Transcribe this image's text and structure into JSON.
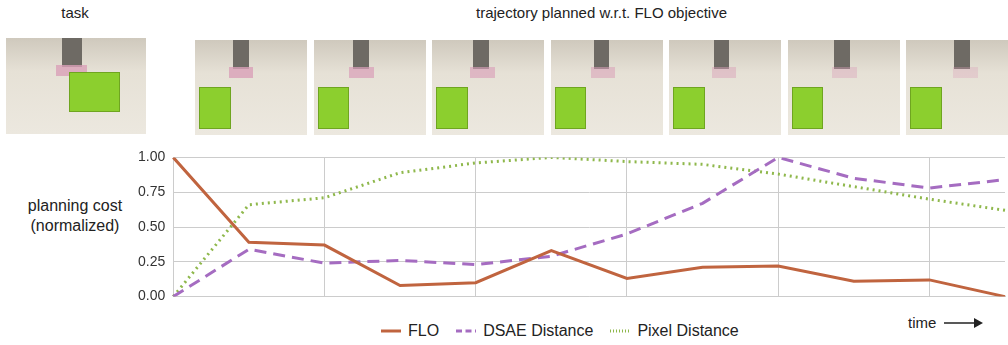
{
  "figure": {
    "task_label": "task",
    "trajectory_label": "trajectory planned w.r.t. FLO objective",
    "frames": 7
  },
  "chart_data": {
    "type": "line",
    "y_label": "planning cost (normalized)",
    "x_label": "time",
    "categories": [
      null,
      null,
      null,
      null,
      null,
      null,
      null,
      null,
      null,
      null,
      null,
      null
    ],
    "series": [
      {
        "name": "FLO",
        "color": "#c0643f",
        "line_style": "solid",
        "values": [
          1.0,
          0.39,
          0.37,
          0.08,
          0.1,
          0.33,
          0.13,
          0.21,
          0.22,
          0.11,
          0.12,
          0.0
        ]
      },
      {
        "name": "DSAE Distance",
        "color": "#a56cc1",
        "line_style": "dashed",
        "values": [
          0.0,
          0.34,
          0.24,
          0.26,
          0.23,
          0.29,
          0.45,
          0.67,
          1.0,
          0.85,
          0.78,
          0.84
        ]
      },
      {
        "name": "Pixel Distance",
        "color": "#8fb84c",
        "line_style": "dotted",
        "values": [
          0.0,
          0.66,
          0.71,
          0.89,
          0.96,
          1.0,
          0.97,
          0.95,
          0.88,
          0.79,
          0.7,
          0.62
        ]
      }
    ],
    "ylim": [
      0,
      1
    ],
    "yticks": [
      {
        "value": 0,
        "label": "0.00"
      },
      {
        "value": 0.25,
        "label": "0.25"
      },
      {
        "value": 0.5,
        "label": "0.50"
      },
      {
        "value": 0.75,
        "label": "0.75"
      },
      {
        "value": 1,
        "label": "1.00"
      }
    ],
    "grid": true,
    "legend": "bottom",
    "tick_labels": "y"
  }
}
